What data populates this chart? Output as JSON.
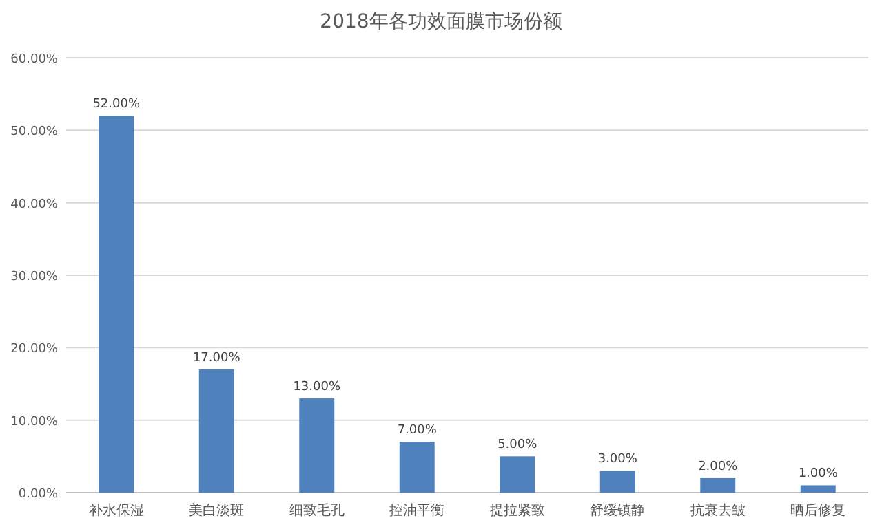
{
  "chart_data": {
    "type": "bar",
    "title": "2018年各功效面膜市场份额",
    "categories": [
      "补水保湿",
      "美白淡斑",
      "细致毛孔",
      "控油平衡",
      "提拉紧致",
      "舒缓镇静",
      "抗衰去皱",
      "晒后修复"
    ],
    "values": [
      52,
      17,
      13,
      7,
      5,
      3,
      2,
      1
    ],
    "value_labels": [
      "52.00%",
      "17.00%",
      "13.00%",
      "7.00%",
      "5.00%",
      "3.00%",
      "2.00%",
      "1.00%"
    ],
    "color": "#4f81bd",
    "ylim": [
      0,
      60
    ],
    "yticks": [
      {
        "value": 0,
        "label": "0.00%"
      },
      {
        "value": 10,
        "label": "10.00%"
      },
      {
        "value": 20,
        "label": "20.00%"
      },
      {
        "value": 30,
        "label": "30.00%"
      },
      {
        "value": 40,
        "label": "40.00%"
      },
      {
        "value": 50,
        "label": "50.00%"
      },
      {
        "value": 60,
        "label": "60.00%"
      }
    ],
    "grid": "y"
  }
}
